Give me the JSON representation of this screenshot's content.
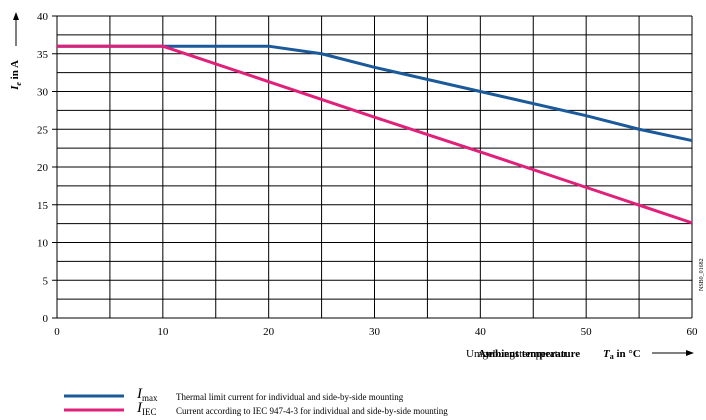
{
  "chart_data": {
    "type": "line",
    "ylabel_symbol": "I",
    "ylabel_sub": "e",
    "ylabel_rest": " in A",
    "xlabel_overlap_1": "Umgebungstemperatur",
    "xlabel_overlap_2": "Ambient temperature",
    "xlabel_symbol": "T",
    "xlabel_sub": "a",
    "xlabel_unit": " in °C",
    "code_label": "NSB0_01682",
    "xlim": [
      0,
      60
    ],
    "ylim": [
      0,
      40
    ],
    "x_ticks": [
      0,
      10,
      20,
      30,
      40,
      50,
      60
    ],
    "y_ticks": [
      0,
      5,
      10,
      15,
      20,
      25,
      30,
      35,
      40
    ],
    "grid": true,
    "legend_placement": "bottom",
    "series": [
      {
        "symbol": "I",
        "sub": "max",
        "description": "Thermal limit current for individual and side-by-side mounting",
        "color": "#1a5a9a",
        "x": [
          0,
          10,
          20,
          25,
          30,
          40,
          50,
          55,
          60
        ],
        "y": [
          36,
          36,
          36,
          35,
          33.2,
          30,
          26.8,
          25,
          23.5
        ]
      },
      {
        "symbol": "I",
        "sub": "IEC",
        "description": "Current according to IEC 947-4-3 for individual and side-by-side mounting",
        "color": "#e0207a",
        "x": [
          0,
          10,
          20,
          30,
          40,
          50,
          60
        ],
        "y": [
          36,
          36,
          31.3,
          26.6,
          22,
          17.3,
          12.6
        ]
      }
    ]
  }
}
